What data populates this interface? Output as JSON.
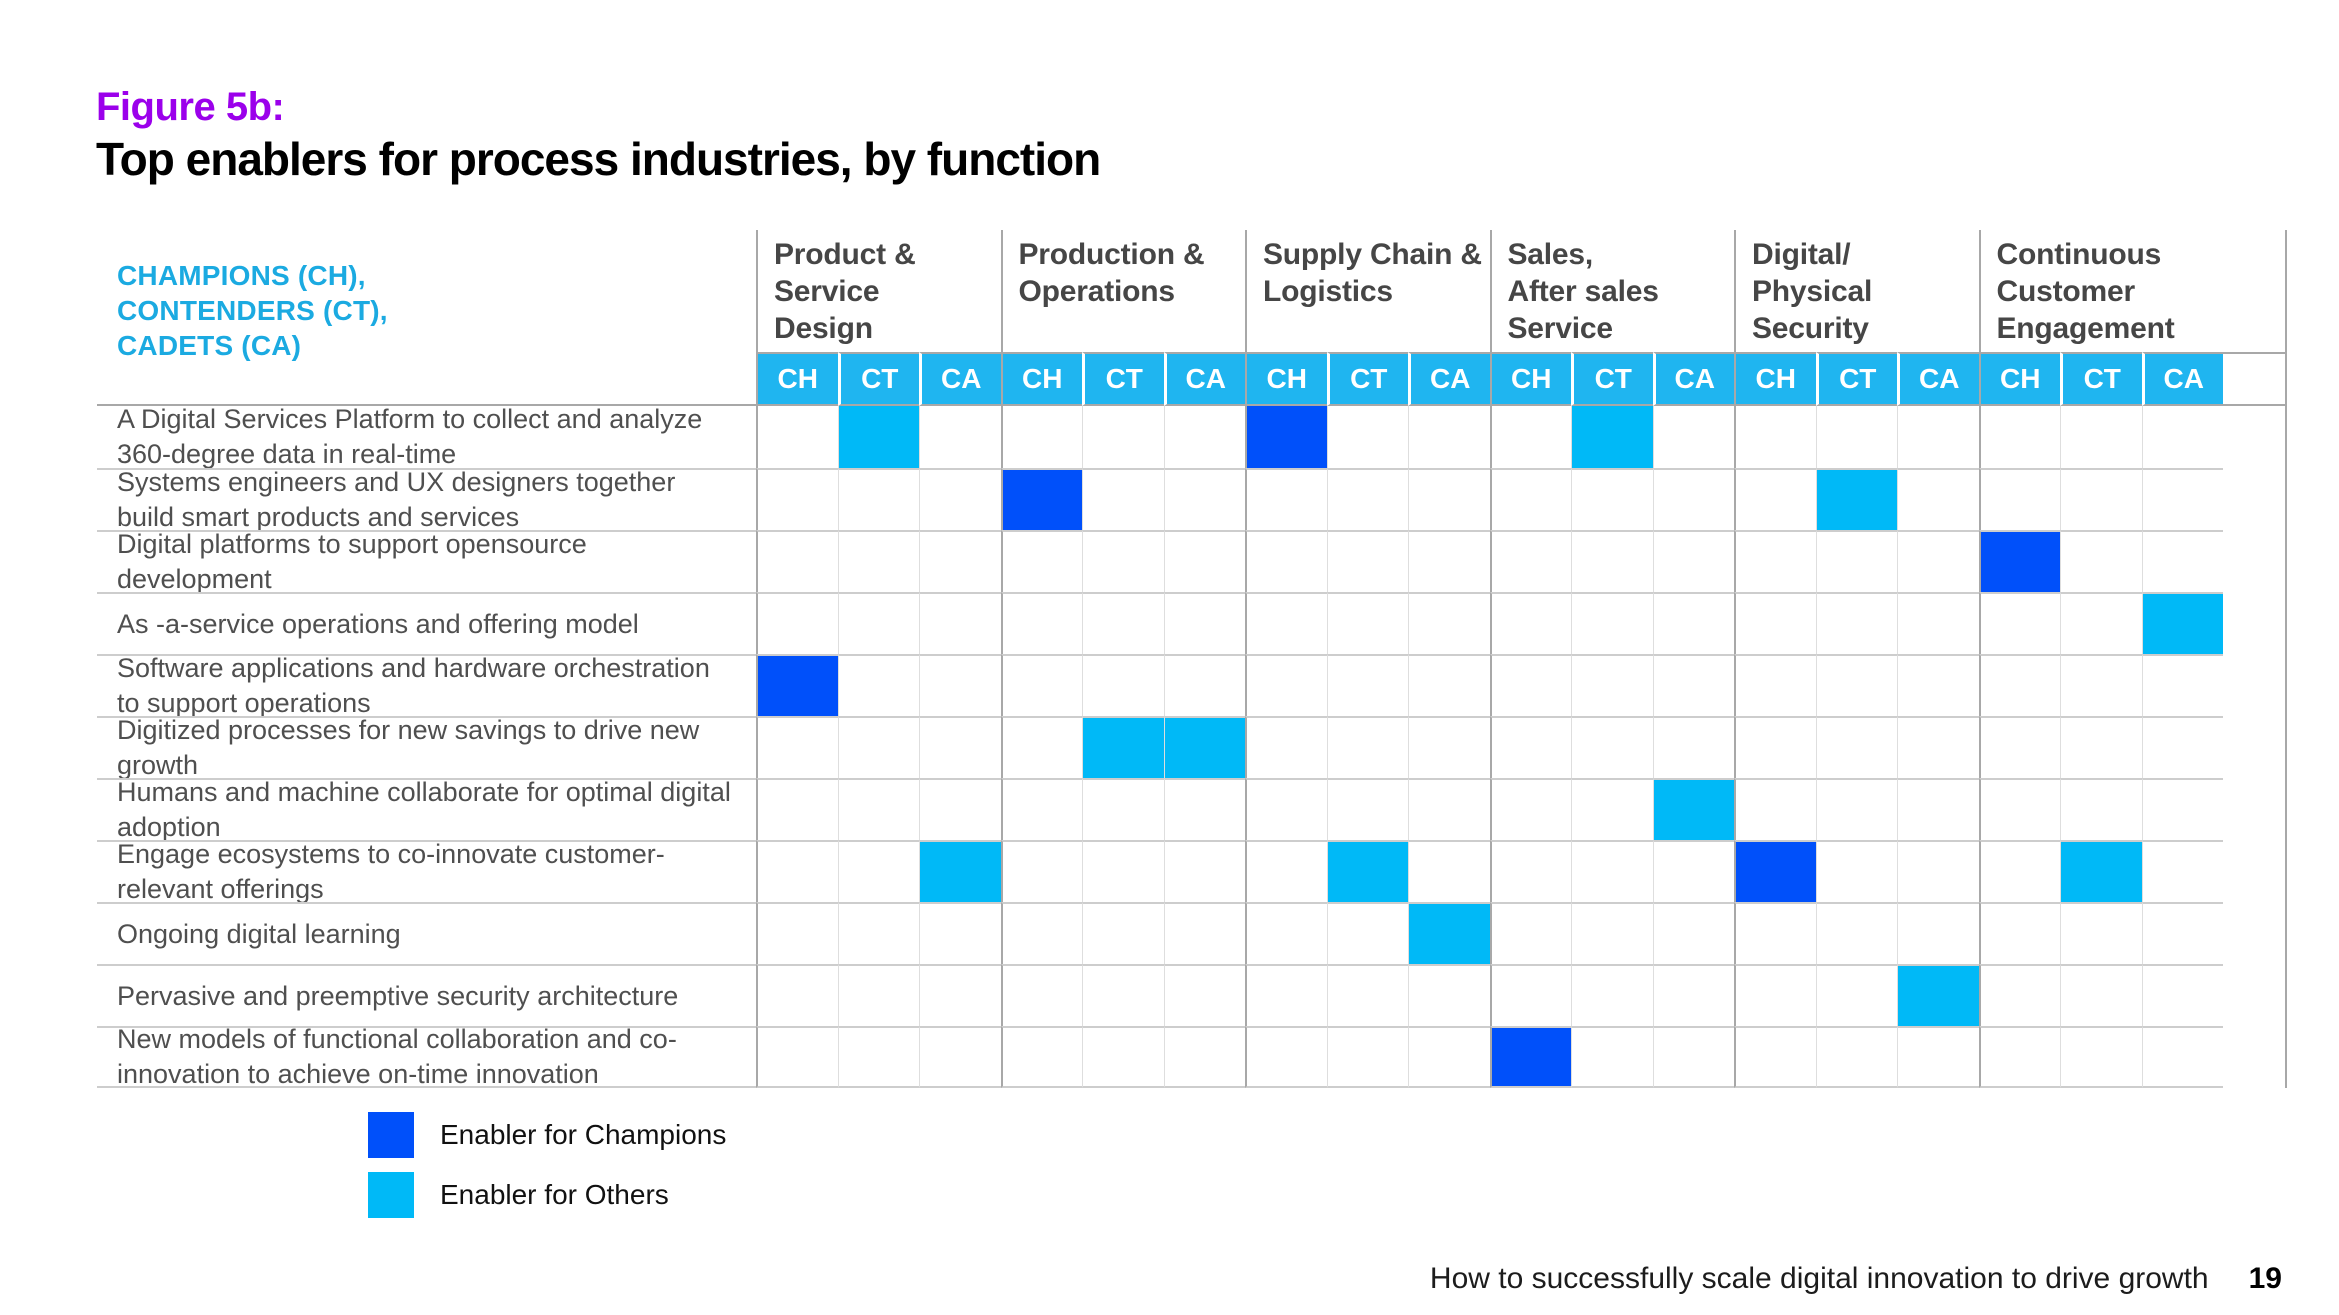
{
  "figure": {
    "label": "Figure 5b:",
    "title": "Top enablers for process industries, by function"
  },
  "chart_data": {
    "type": "heatmap",
    "corner_label": "CHAMPIONS (CH),\nCONTENDERS (CT),\nCADETS (CA)",
    "column_groups": [
      "Product &\nService\nDesign",
      "Production &\nOperations",
      "Supply Chain &\nLogistics",
      "Sales,\nAfter sales\nService",
      "Digital/\nPhysical\nSecurity",
      "Continuous\nCustomer\nEngagement"
    ],
    "sub_columns": [
      "CH",
      "CT",
      "CA"
    ],
    "cell_values": {
      "C": "Enabler for Champions",
      "O": "Enabler for Others"
    },
    "rows": [
      {
        "label": "A Digital Services Platform to collect and analyze 360-degree data in real-time",
        "cells": [
          "",
          "O",
          "",
          "",
          "",
          "",
          "C",
          "",
          "",
          "",
          "O",
          "",
          "",
          "",
          "",
          "",
          "",
          ""
        ]
      },
      {
        "label": "Systems engineers and UX designers together build smart products and services",
        "cells": [
          "",
          "",
          "",
          "C",
          "",
          "",
          "",
          "",
          "",
          "",
          "",
          "",
          "",
          "O",
          "",
          "",
          "",
          ""
        ]
      },
      {
        "label": "Digital platforms to support opensource development",
        "cells": [
          "",
          "",
          "",
          "",
          "",
          "",
          "",
          "",
          "",
          "",
          "",
          "",
          "",
          "",
          "",
          "C",
          "",
          ""
        ]
      },
      {
        "label": "As -a-service operations and offering model",
        "cells": [
          "",
          "",
          "",
          "",
          "",
          "",
          "",
          "",
          "",
          "",
          "",
          "",
          "",
          "",
          "",
          "",
          "",
          "O"
        ]
      },
      {
        "label": "Software applications and hardware orchestration to support operations",
        "cells": [
          "C",
          "",
          "",
          "",
          "",
          "",
          "",
          "",
          "",
          "",
          "",
          "",
          "",
          "",
          "",
          "",
          "",
          ""
        ]
      },
      {
        "label": "Digitized processes for new savings to drive new growth",
        "cells": [
          "",
          "",
          "",
          "",
          "O",
          "O",
          "",
          "",
          "",
          "",
          "",
          "",
          "",
          "",
          "",
          "",
          "",
          ""
        ]
      },
      {
        "label": "Humans and machine collaborate for optimal digital adoption",
        "cells": [
          "",
          "",
          "",
          "",
          "",
          "",
          "",
          "",
          "",
          "",
          "",
          "O",
          "",
          "",
          "",
          "",
          "",
          ""
        ]
      },
      {
        "label": "Engage ecosystems to co-innovate customer-relevant offerings",
        "cells": [
          "",
          "",
          "O",
          "",
          "",
          "",
          "",
          "O",
          "",
          "",
          "",
          "",
          "C",
          "",
          "",
          "",
          "O",
          ""
        ]
      },
      {
        "label": "Ongoing digital learning",
        "cells": [
          "",
          "",
          "",
          "",
          "",
          "",
          "",
          "",
          "O",
          "",
          "",
          "",
          "",
          "",
          "",
          "",
          "",
          ""
        ]
      },
      {
        "label": "Pervasive and preemptive security architecture",
        "cells": [
          "",
          "",
          "",
          "",
          "",
          "",
          "",
          "",
          "",
          "",
          "",
          "",
          "",
          "",
          "O",
          "",
          "",
          ""
        ]
      },
      {
        "label": "New models of functional collaboration and co-innovation to achieve on-time innovation",
        "cells": [
          "",
          "",
          "",
          "",
          "",
          "",
          "",
          "",
          "",
          "C",
          "",
          "",
          "",
          "",
          "",
          "",
          "",
          ""
        ]
      }
    ]
  },
  "legend": [
    {
      "key": "C",
      "label": "Enabler for Champions",
      "color": "#0050FA"
    },
    {
      "key": "O",
      "label": "Enabler for Others",
      "color": "#00B9F7"
    }
  ],
  "colors": {
    "figure_label": "#9B00EB",
    "corner_text": "#1BAAE1",
    "header_bar": "#1FB5F0",
    "champion": "#0050FA",
    "other": "#00B9F7"
  },
  "footer": {
    "text": "How to successfully scale digital innovation to drive growth",
    "page": "19"
  }
}
